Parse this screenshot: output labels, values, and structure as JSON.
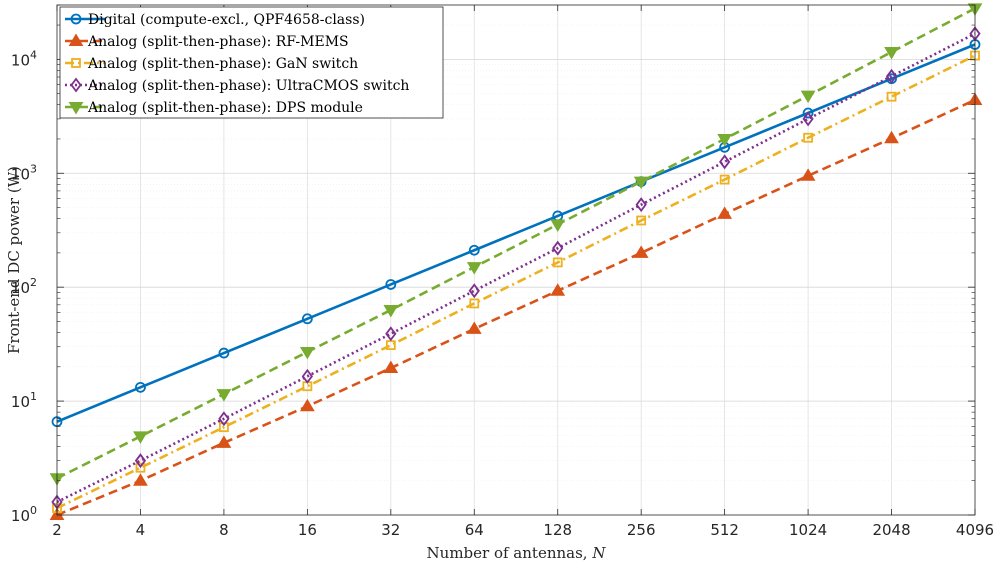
{
  "chart_data": {
    "type": "line",
    "xscale": "log2",
    "yscale": "log10",
    "x": [
      2,
      4,
      8,
      16,
      32,
      64,
      128,
      256,
      512,
      1024,
      2048,
      4096
    ],
    "x_tick_labels": [
      "2",
      "4",
      "8",
      "16",
      "32",
      "64",
      "128",
      "256",
      "512",
      "1024",
      "2048",
      "4096"
    ],
    "y_ticks": [
      {
        "value": 1,
        "base": "10",
        "exp": "0"
      },
      {
        "value": 10,
        "base": "10",
        "exp": "1"
      },
      {
        "value": 100,
        "base": "10",
        "exp": "2"
      },
      {
        "value": 1000,
        "base": "10",
        "exp": "3"
      },
      {
        "value": 10000,
        "base": "10",
        "exp": "4"
      }
    ],
    "xlim": [
      2,
      4096
    ],
    "ylim": [
      1,
      30000
    ],
    "xlabel_text": "Number of antennas, ",
    "xlabel_var": "N",
    "ylabel": "Front-end DC power (W)",
    "grid": true,
    "legend_position": "top-left",
    "series": [
      {
        "name": "Digital (compute-excl., QPF4658-class)",
        "color": "#0072BD",
        "dash": "solid",
        "marker": "circle",
        "values": [
          6.6,
          13.2,
          26.4,
          52.8,
          105.6,
          211,
          422,
          845,
          1690,
          3380,
          6760,
          13500
        ]
      },
      {
        "name": "Analog (split-then-phase): RF-MEMS",
        "color": "#D95319",
        "dash": "dashed",
        "marker": "triangle-up",
        "values": [
          1.0,
          2.0,
          4.3,
          9.0,
          19.5,
          43,
          93,
          200,
          440,
          950,
          2030,
          4400
        ]
      },
      {
        "name": "Analog (split-then-phase): GaN switch",
        "color": "#EDB120",
        "dash": "dashdot",
        "marker": "square",
        "values": [
          1.15,
          2.6,
          5.9,
          13.5,
          31,
          72,
          165,
          385,
          880,
          2050,
          4700,
          10800
        ]
      },
      {
        "name": "Analog (split-then-phase): UltraCMOS switch",
        "color": "#7E2F8E",
        "dash": "dotted",
        "marker": "diamond",
        "values": [
          1.3,
          3.0,
          7.0,
          16.5,
          39,
          93,
          220,
          530,
          1260,
          3000,
          7100,
          16800
        ]
      },
      {
        "name": "Analog (split-then-phase): DPS module",
        "color": "#77AC30",
        "dash": "dashed",
        "marker": "triangle-down",
        "values": [
          2.1,
          4.9,
          11.5,
          27,
          63,
          150,
          355,
          845,
          2000,
          4800,
          11600,
          28000
        ]
      }
    ]
  }
}
